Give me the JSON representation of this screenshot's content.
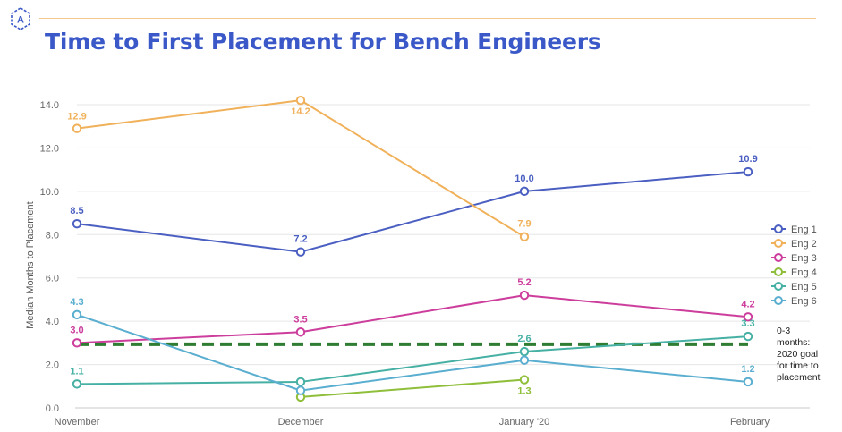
{
  "header": {
    "title": "Time to First Placement for Bench Engineers",
    "logo_icon": "a-hexagon-logo-icon"
  },
  "colors": {
    "title": "#3a58c8",
    "rule": "#f5c88a",
    "goal_line": "#2e7d32"
  },
  "chart_data": {
    "type": "line",
    "title": "Time to First Placement for Bench Engineers",
    "xlabel": "",
    "ylabel": "Median Months to Placement",
    "categories": [
      "November",
      "December",
      "January '20",
      "February"
    ],
    "ylim": [
      0,
      14
    ],
    "yticks": [
      "0.0",
      "2.0",
      "4.0",
      "6.0",
      "8.0",
      "10.0",
      "12.0",
      "14.0"
    ],
    "grid": true,
    "legend_position": "right",
    "series": [
      {
        "name": "Eng 1",
        "color": "#4a5fc1",
        "values": [
          8.5,
          7.2,
          10.0,
          10.9
        ],
        "labels": [
          "8.5",
          "7.2",
          "10.0",
          "10.9"
        ]
      },
      {
        "name": "Eng 2",
        "color": "#f0b15a",
        "values": [
          12.9,
          14.2,
          7.9,
          null
        ],
        "labels": [
          "12.9",
          "14.2",
          "7.9",
          ""
        ]
      },
      {
        "name": "Eng 3",
        "color": "#cc3d9c",
        "values": [
          3.0,
          3.5,
          5.2,
          4.2
        ],
        "labels": [
          "3.0",
          "3.5",
          "5.2",
          "4.2"
        ]
      },
      {
        "name": "Eng 4",
        "color": "#8fbf3a",
        "values": [
          null,
          0.5,
          1.3,
          null
        ],
        "labels": [
          "",
          "",
          "1.3",
          ""
        ]
      },
      {
        "name": "Eng 5",
        "color": "#45b0a3",
        "values": [
          1.1,
          1.2,
          2.6,
          3.3
        ],
        "labels": [
          "1.1",
          "",
          "2.6",
          "3.3"
        ]
      },
      {
        "name": "Eng 6",
        "color": "#5aaed0",
        "values": [
          4.3,
          0.8,
          2.2,
          1.2
        ],
        "labels": [
          "4.3",
          "",
          "",
          "1.2"
        ]
      }
    ],
    "goal": {
      "value": 3.0,
      "color": "#2e7d32",
      "note_lines": [
        "0-3",
        "months:",
        "2020 goal",
        "for time to",
        "placement"
      ]
    }
  }
}
